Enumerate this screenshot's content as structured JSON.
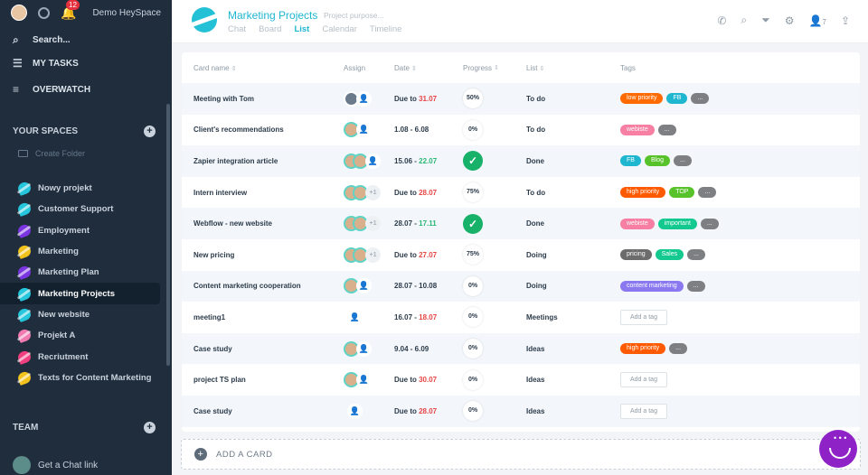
{
  "sidebar": {
    "org_name": "Demo HeySpace",
    "notif_count": "12",
    "search_label": "Search...",
    "my_tasks_label": "MY TASKS",
    "overwatch_label": "OVERWATCH",
    "spaces_header": "YOUR SPACES",
    "create_folder": "Create Folder",
    "spaces": [
      {
        "label": "Nowy projekt",
        "color": "#25c6dc"
      },
      {
        "label": "Customer Support",
        "color": "#25c6dc"
      },
      {
        "label": "Employment",
        "color": "#7a35e0"
      },
      {
        "label": "Marketing",
        "color": "#f0c21b"
      },
      {
        "label": "Marketing Plan",
        "color": "#7a35e0"
      },
      {
        "label": "Marketing Projects",
        "color": "#25c6dc"
      },
      {
        "label": "New website",
        "color": "#25c6dc"
      },
      {
        "label": "Projekt A",
        "color": "#f07ab0"
      },
      {
        "label": "Recriutment",
        "color": "#ef3f7e"
      },
      {
        "label": "Texts for Content Marketing",
        "color": "#f0c21b"
      }
    ],
    "team_header": "TEAM",
    "chat_link": "Get a Chat link"
  },
  "header": {
    "title": "Marketing Projects",
    "purpose_placeholder": "Project purpose...",
    "tabs": [
      "Chat",
      "Board",
      "List",
      "Calendar",
      "Timeline"
    ],
    "active_tab": "List",
    "member_count": "7"
  },
  "table": {
    "columns": [
      "Card name",
      "Assign",
      "Date",
      "Progress",
      "List",
      "Tags"
    ],
    "rows": [
      {
        "name": "Meeting with Tom",
        "date_a": "Due to ",
        "date_b": "31.07",
        "progress": "50%",
        "list": "To do",
        "tags": [
          {
            "t": "low priority",
            "c": "#ff6a00"
          },
          {
            "t": "FB",
            "c": "#1fb6d0"
          }
        ],
        "more": true
      },
      {
        "name": "Client's recommendations",
        "date_a": "1.08 - 6.08",
        "date_b": "",
        "progress": "0%",
        "list": "To do",
        "tags": [
          {
            "t": "webiste",
            "c": "#f77fa3"
          }
        ],
        "more": true
      },
      {
        "name": "Zapier integration article",
        "date_a": "15.06 - ",
        "date_b": "22.07",
        "progress": "done",
        "list": "Done",
        "tags": [
          {
            "t": "FB",
            "c": "#1fb6d0"
          },
          {
            "t": "Blog",
            "c": "#58c22a"
          }
        ],
        "more": true
      },
      {
        "name": "Intern interview",
        "date_a": "Due to ",
        "date_b": "28.07",
        "progress": "75%",
        "list": "To do",
        "tags": [
          {
            "t": "high priority",
            "c": "#ff5a00"
          },
          {
            "t": "TOP",
            "c": "#58c22a"
          }
        ],
        "more": true
      },
      {
        "name": "Webflow - new website",
        "date_a": "28.07 - ",
        "date_b": "17.11",
        "progress": "done",
        "list": "Done",
        "tags": [
          {
            "t": "webiste",
            "c": "#f77fa3"
          },
          {
            "t": "important",
            "c": "#14c98f"
          }
        ],
        "more": true
      },
      {
        "name": "New pricing",
        "date_a": "Due to ",
        "date_b": "27.07",
        "progress": "75%",
        "list": "Doing",
        "tags": [
          {
            "t": "pricing",
            "c": "#6c6c6c"
          },
          {
            "t": "Sales",
            "c": "#14c98f"
          }
        ],
        "more": true
      },
      {
        "name": "Content marketing cooperation",
        "date_a": "28.07 - 10.08",
        "date_b": "",
        "progress": "0%",
        "list": "Doing",
        "tags": [
          {
            "t": "content marketing",
            "c": "#8a78f0"
          }
        ],
        "more": true
      },
      {
        "name": "meeting1",
        "date_a": "16.07 - ",
        "date_b": "18.07",
        "progress": "0%",
        "list": "Meetings",
        "tags": [],
        "more": false,
        "addtag": "Add a tag"
      },
      {
        "name": "Case study",
        "date_a": "9.04 - 6.09",
        "date_b": "",
        "progress": "0%",
        "list": "Ideas",
        "tags": [
          {
            "t": "high priority",
            "c": "#ff5a00"
          }
        ],
        "more": true
      },
      {
        "name": "project TS plan",
        "date_a": "Due to ",
        "date_b": "30.07",
        "progress": "0%",
        "list": "Ideas",
        "tags": [],
        "more": false,
        "addtag": "Add a tag"
      },
      {
        "name": "Case study",
        "date_a": "Due to ",
        "date_b": "28.07",
        "progress": "0%",
        "list": "Ideas",
        "tags": [],
        "more": false,
        "addtag": "Add a tag"
      }
    ]
  },
  "add_card_label": "ADD A CARD"
}
